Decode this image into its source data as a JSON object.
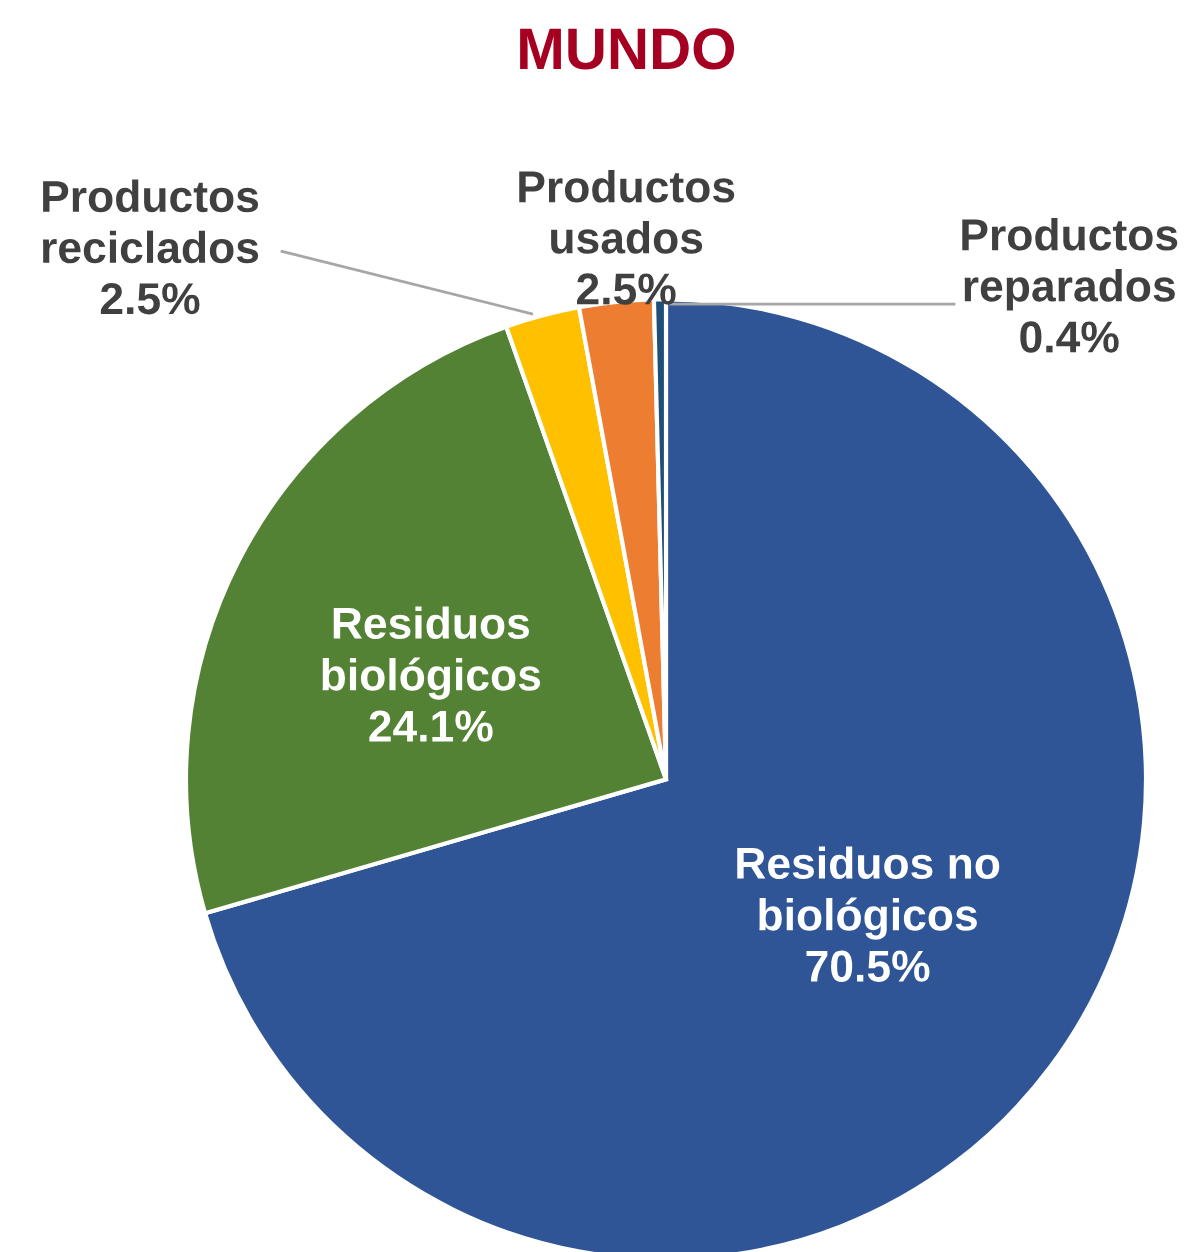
{
  "chart_data": {
    "type": "pie",
    "title": "MUNDO",
    "categories": [
      "Residuos no biológicos",
      "Residuos biológicos",
      "Productos reciclados",
      "Productos usados",
      "Productos reparados"
    ],
    "values": [
      70.5,
      24.1,
      2.5,
      2.5,
      0.4
    ],
    "colors": [
      "#2f5597",
      "#548235",
      "#ffc000",
      "#ed7d31",
      "#1f4e79"
    ],
    "value_labels": [
      "70.5%",
      "24.1%",
      "2.5%",
      "2.5%",
      "0.4%"
    ]
  }
}
